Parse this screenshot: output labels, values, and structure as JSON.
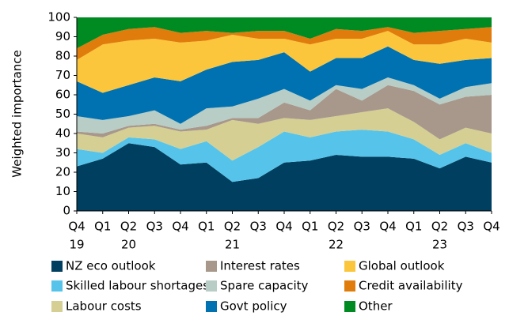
{
  "chart_data": {
    "type": "stacked_area",
    "y_label": "Weighted importance",
    "categories": [
      [
        "Q4",
        "19"
      ],
      [
        "Q1",
        null
      ],
      [
        "Q2",
        "20"
      ],
      [
        "Q3",
        null
      ],
      [
        "Q4",
        null
      ],
      [
        "Q1",
        null
      ],
      [
        "Q2",
        "21"
      ],
      [
        "Q3",
        null
      ],
      [
        "Q4",
        null
      ],
      [
        "Q1",
        null
      ],
      [
        "Q2",
        "22"
      ],
      [
        "Q3",
        null
      ],
      [
        "Q4",
        null
      ],
      [
        "Q1",
        null
      ],
      [
        "Q2",
        "23"
      ],
      [
        "Q3",
        null
      ],
      [
        "Q4",
        null
      ]
    ],
    "ylim": [
      0,
      100
    ],
    "yticks": [
      0,
      10,
      20,
      30,
      40,
      50,
      60,
      70,
      80,
      90,
      100
    ],
    "series": [
      {
        "name": "NZ eco outlook",
        "color": "#003f5f",
        "values": [
          23,
          27,
          35,
          33,
          24,
          25,
          15,
          17,
          25,
          26,
          29,
          28,
          28,
          27,
          22,
          28,
          25
        ]
      },
      {
        "name": "Skilled labour shortages",
        "color": "#56c4ea",
        "values": [
          9,
          3,
          3,
          4,
          8,
          11,
          11,
          16,
          16,
          12,
          12,
          14,
          13,
          10,
          7,
          7,
          5
        ]
      },
      {
        "name": "Labour costs",
        "color": "#d5cf93",
        "values": [
          8,
          8,
          5,
          7,
          9,
          6,
          21,
          12,
          7,
          9,
          8,
          9,
          12,
          9,
          8,
          8,
          10
        ]
      },
      {
        "name": "Interest rates",
        "color": "#a8988b",
        "values": [
          1,
          2,
          1,
          1,
          1,
          2,
          1,
          3,
          8,
          5,
          14,
          6,
          12,
          16,
          18,
          16,
          20
        ]
      },
      {
        "name": "Spare capacity",
        "color": "#b7cdc6",
        "values": [
          8,
          7,
          5,
          7,
          3,
          9,
          6,
          10,
          7,
          5,
          2,
          6,
          4,
          3,
          3,
          5,
          6
        ]
      },
      {
        "name": "Govt policy",
        "color": "#0072b1",
        "values": [
          18,
          14,
          16,
          17,
          22,
          20,
          23,
          20,
          19,
          15,
          14,
          16,
          16,
          13,
          18,
          14,
          13
        ]
      },
      {
        "name": "Global outlook",
        "color": "#fcc63c",
        "values": [
          11,
          25,
          23,
          20,
          20,
          15,
          14,
          11,
          7,
          14,
          10,
          10,
          8,
          8,
          10,
          11,
          8
        ]
      },
      {
        "name": "Credit availability",
        "color": "#e07c0b",
        "values": [
          6,
          5,
          6,
          6,
          5,
          5,
          1,
          4,
          4,
          3,
          5,
          4,
          2,
          6,
          7,
          5,
          8
        ]
      },
      {
        "name": "Other",
        "color": "#008b22",
        "values": [
          16,
          9,
          6,
          5,
          8,
          7,
          8,
          7,
          7,
          11,
          6,
          7,
          5,
          8,
          7,
          6,
          5
        ]
      }
    ]
  }
}
